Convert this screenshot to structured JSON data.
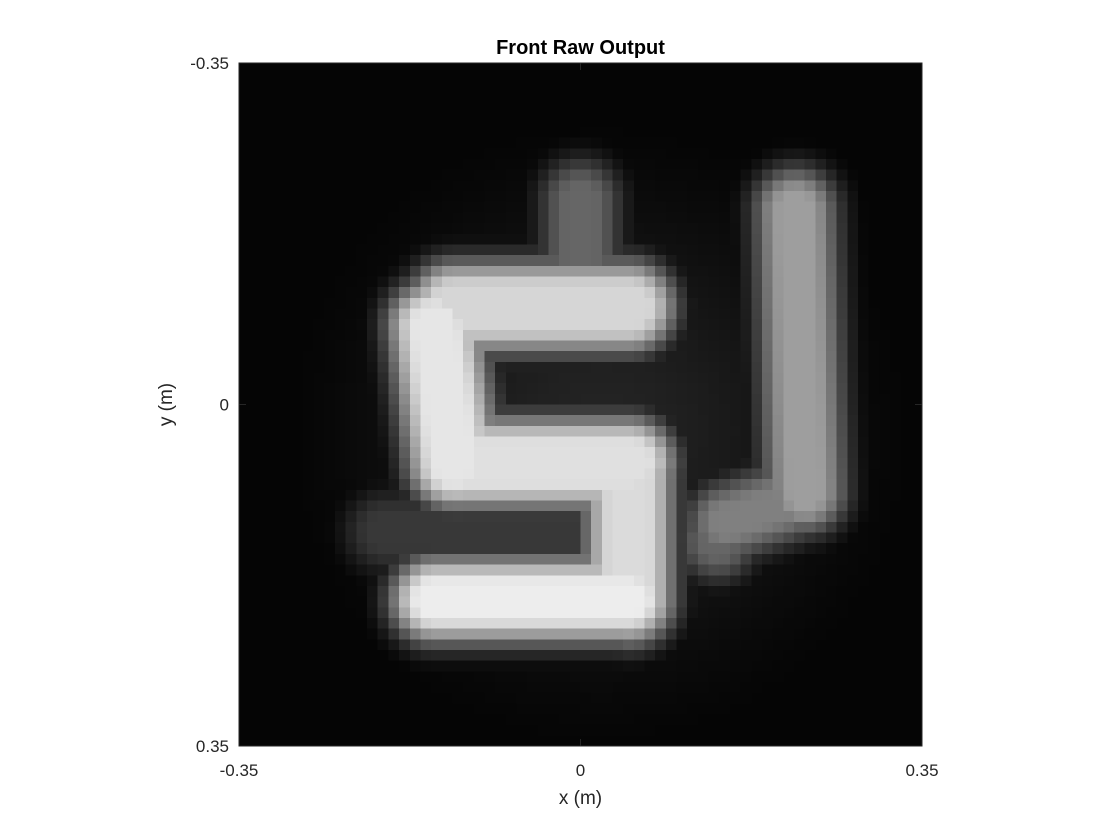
{
  "chart_data": {
    "type": "heatmap",
    "title": "Front Raw Output",
    "xlabel": "x (m)",
    "ylabel": "y (m)",
    "xlim": [
      -0.35,
      0.35
    ],
    "ylim": [
      -0.35,
      0.35
    ],
    "y_direction": "reversed",
    "xticks": [
      {
        "value": -0.35,
        "label": "-0.35"
      },
      {
        "value": 0,
        "label": "0"
      },
      {
        "value": 0.35,
        "label": "0.35"
      }
    ],
    "yticks": [
      {
        "value": -0.35,
        "label": "-0.35"
      },
      {
        "value": 0,
        "label": "0"
      },
      {
        "value": 0.35,
        "label": "0.35"
      }
    ],
    "colormap": "gray",
    "grid": false,
    "intensity_range": [
      0,
      1
    ],
    "strokes": [
      {
        "from": [
          -0.13,
          -0.1
        ],
        "to": [
          0.05,
          -0.1
        ],
        "intensity": 0.84,
        "width": 0.075
      },
      {
        "from": [
          -0.15,
          -0.08
        ],
        "to": [
          -0.13,
          0.06
        ],
        "intensity": 0.9,
        "width": 0.075
      },
      {
        "from": [
          -0.13,
          0.06
        ],
        "to": [
          0.05,
          0.06
        ],
        "intensity": 0.88,
        "width": 0.075
      },
      {
        "from": [
          0.05,
          0.07
        ],
        "to": [
          0.05,
          0.2
        ],
        "intensity": 0.86,
        "width": 0.07
      },
      {
        "from": [
          -0.15,
          0.2
        ],
        "to": [
          0.05,
          0.2
        ],
        "intensity": 0.93,
        "width": 0.06
      },
      {
        "from": [
          0.0,
          -0.21
        ],
        "to": [
          0.0,
          -0.14
        ],
        "intensity": 0.4,
        "width": 0.05
      },
      {
        "from": [
          -0.2,
          0.13
        ],
        "to": [
          0.02,
          0.13
        ],
        "intensity": 0.22,
        "width": 0.055
      },
      {
        "from": [
          0.22,
          -0.2
        ],
        "to": [
          0.23,
          0.09
        ],
        "intensity": 0.62,
        "width": 0.055
      },
      {
        "from": [
          0.21,
          0.1
        ],
        "to": [
          0.15,
          0.12
        ],
        "intensity": 0.5,
        "width": 0.05
      },
      {
        "from": [
          0.15,
          0.12
        ],
        "to": [
          0.14,
          0.14
        ],
        "intensity": 0.4,
        "width": 0.05
      }
    ],
    "blur_sigma": 0.022
  }
}
